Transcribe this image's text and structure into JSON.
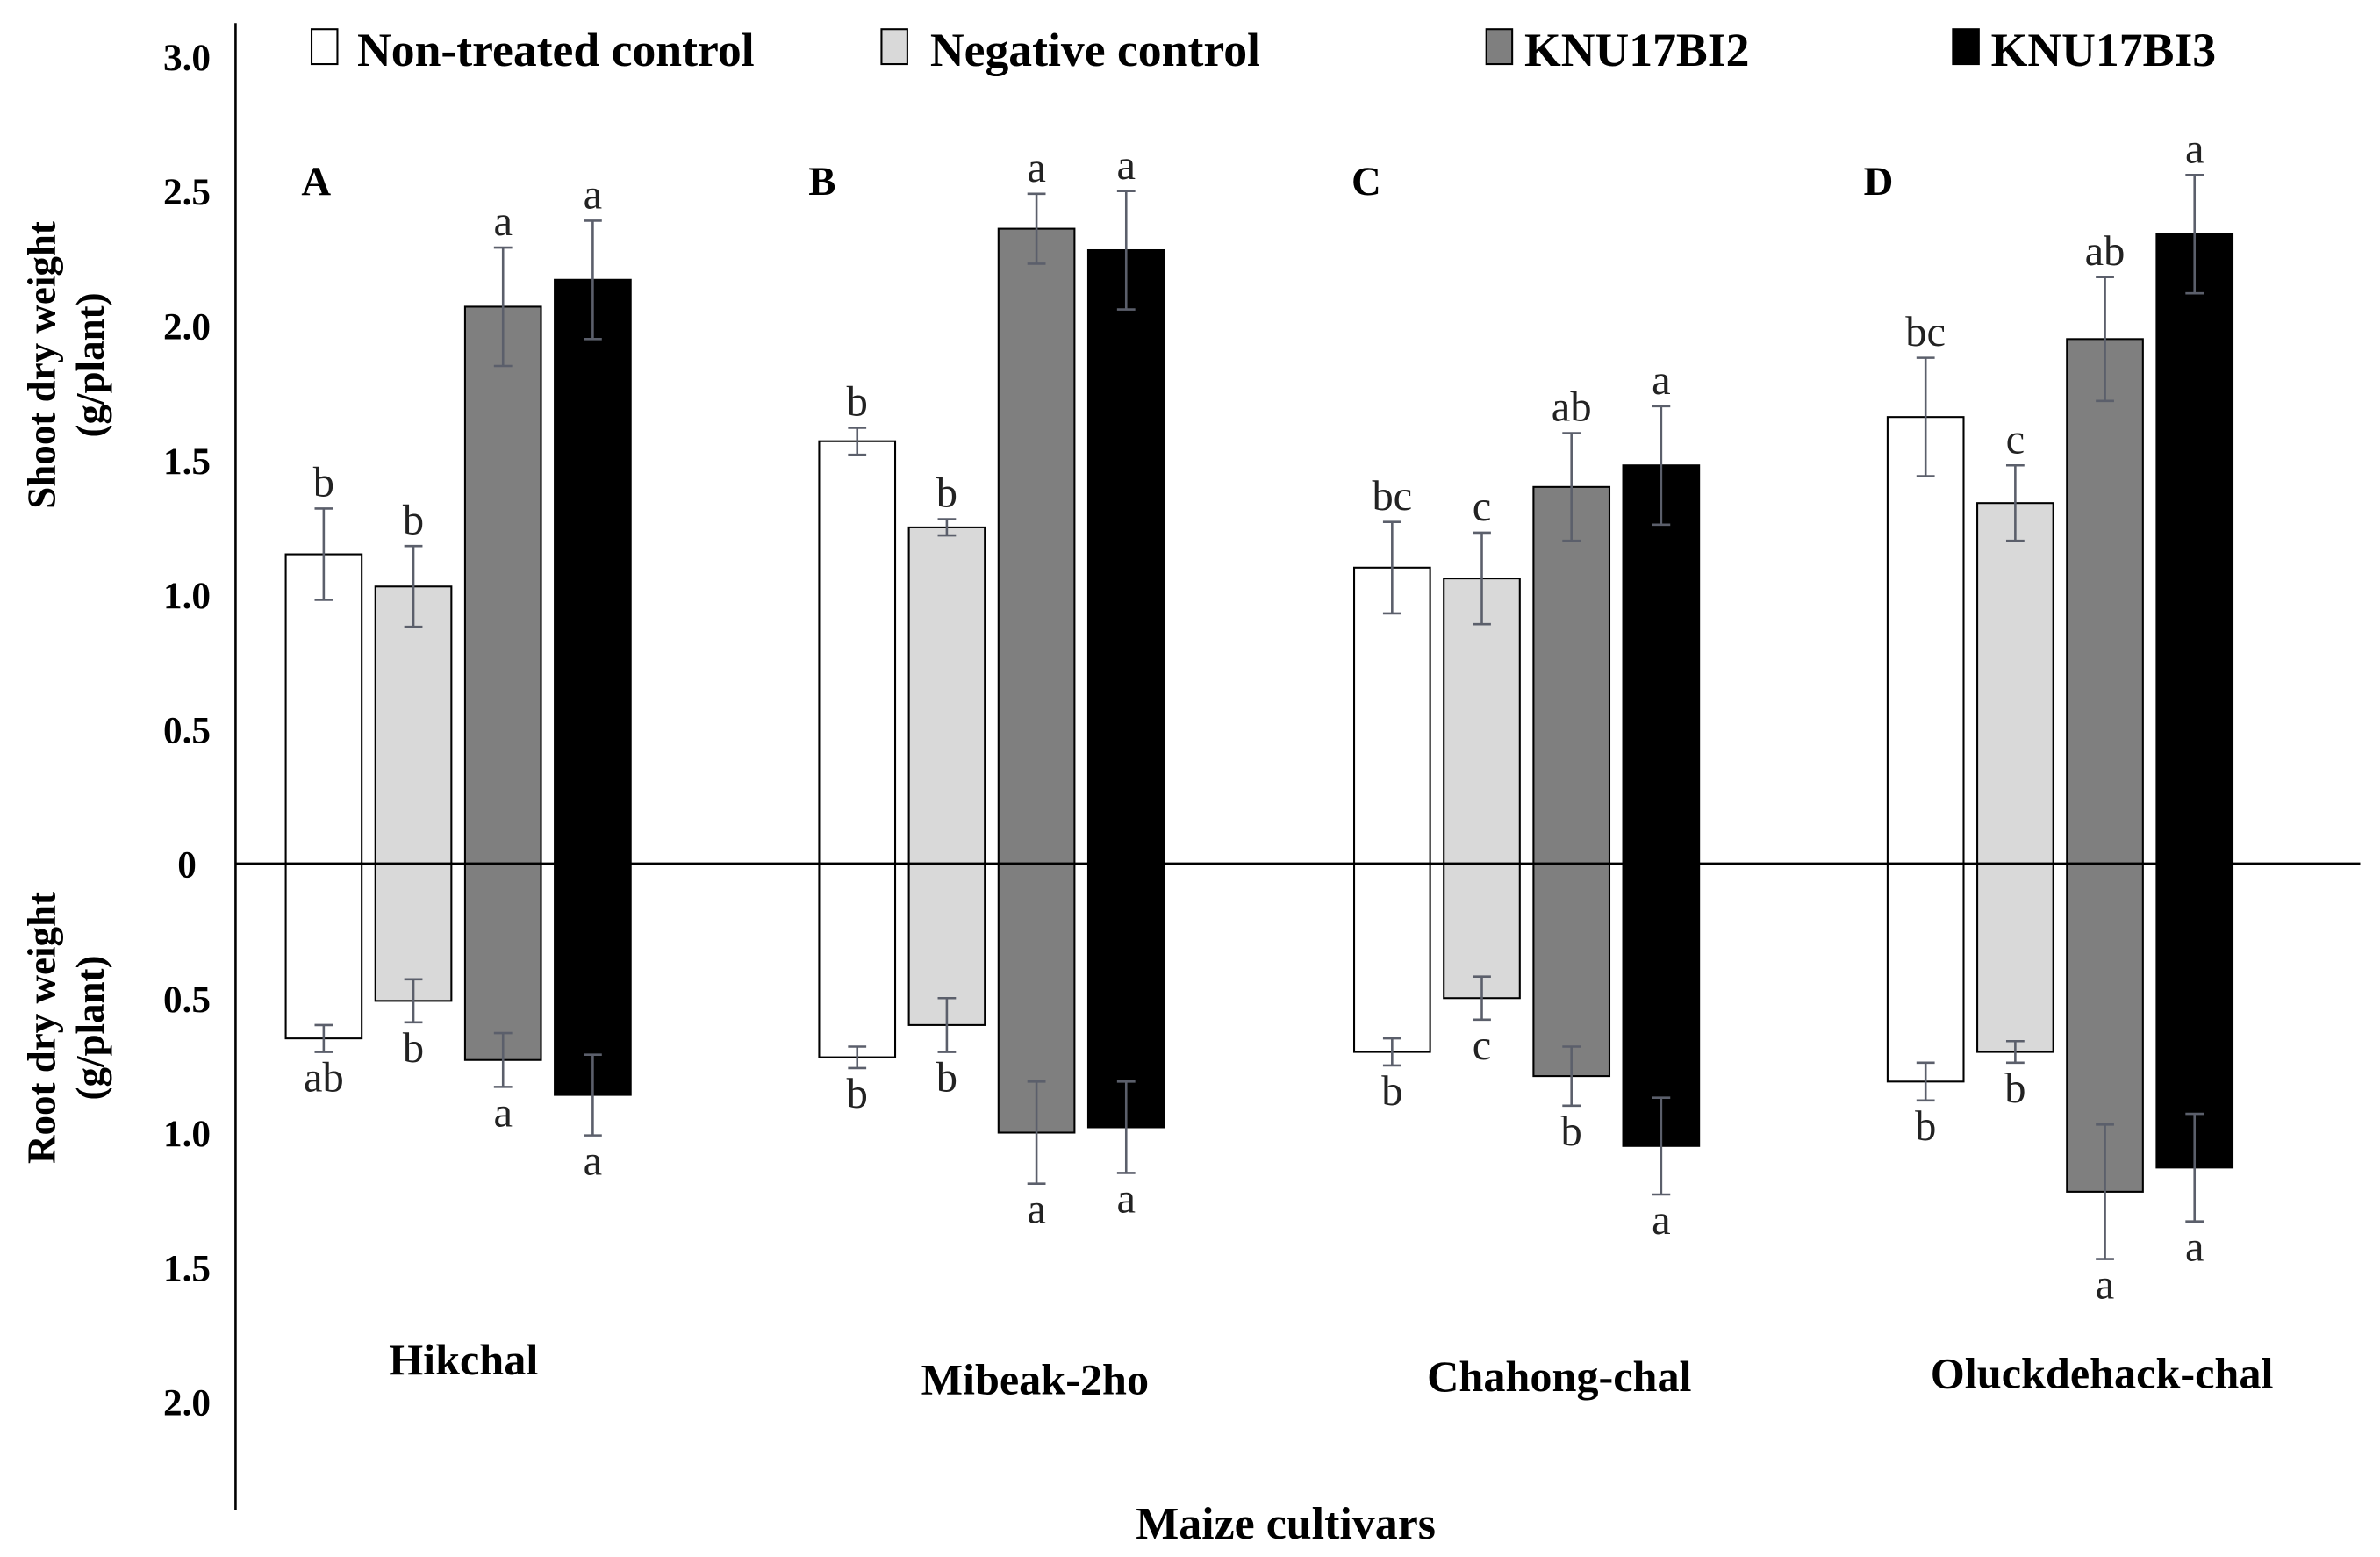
{
  "chart_data": {
    "type": "bar",
    "panels": [
      "A",
      "B",
      "C",
      "D"
    ],
    "categories": [
      "Hikchal",
      "Mibeak-2ho",
      "Chahong-chal",
      "Oluckdehack-chal"
    ],
    "xlabel": "Maize cultivars",
    "ylabel_upper": {
      "line1": "Shoot dry weight",
      "line2": "(g/plant)"
    },
    "ylabel_lower": {
      "line1": "Root dry weight",
      "line2": "(g/plant)"
    },
    "upper_ticks": [
      "3.0",
      "2.5",
      "2.0",
      "1.5",
      "1.0",
      "0.5",
      "0"
    ],
    "lower_ticks": [
      "0.5",
      "1.0",
      "1.5",
      "2.0"
    ],
    "ylim_upper": [
      0,
      3.1
    ],
    "ylim_lower": [
      0,
      2.4
    ],
    "grid": false,
    "legend_position": "top",
    "series": [
      {
        "name": "Non-treated control",
        "color": "#ffffff",
        "shoot": [
          1.15,
          1.57,
          1.1,
          1.66
        ],
        "shoot_error": [
          0.17,
          0.05,
          0.17,
          0.22
        ],
        "shoot_letters": [
          "b",
          "b",
          "bc",
          "bc"
        ],
        "root": [
          0.65,
          0.72,
          0.7,
          0.81
        ],
        "root_error": [
          0.05,
          0.04,
          0.05,
          0.07
        ],
        "root_letters": [
          "ab",
          "b",
          "b",
          "b"
        ]
      },
      {
        "name": "Negative control",
        "color": "#d9d9d9",
        "shoot": [
          1.03,
          1.25,
          1.06,
          1.34
        ],
        "shoot_error": [
          0.15,
          0.03,
          0.17,
          0.14
        ],
        "shoot_letters": [
          "b",
          "b",
          "c",
          "c"
        ],
        "root": [
          0.51,
          0.6,
          0.5,
          0.7
        ],
        "root_error": [
          0.08,
          0.1,
          0.08,
          0.04
        ],
        "root_letters": [
          "b",
          "b",
          "c",
          "b"
        ]
      },
      {
        "name": "KNU17BI2",
        "color": "#7f7f7f",
        "shoot": [
          2.07,
          2.36,
          1.4,
          1.95
        ],
        "shoot_error": [
          0.22,
          0.13,
          0.2,
          0.23
        ],
        "shoot_letters": [
          "a",
          "a",
          "ab",
          "ab"
        ],
        "root": [
          0.73,
          1.0,
          0.79,
          1.22
        ],
        "root_error": [
          0.1,
          0.19,
          0.11,
          0.25
        ],
        "root_letters": [
          "a",
          "a",
          "b",
          "a"
        ]
      },
      {
        "name": "KNU17BI3",
        "color": "#000000",
        "shoot": [
          2.17,
          2.28,
          1.48,
          2.34
        ],
        "shoot_error": [
          0.22,
          0.22,
          0.22,
          0.22
        ],
        "shoot_letters": [
          "a",
          "a",
          "a",
          "a"
        ],
        "root": [
          0.86,
          0.98,
          1.05,
          1.13
        ],
        "root_error": [
          0.15,
          0.17,
          0.18,
          0.2
        ],
        "root_letters": [
          "a",
          "a",
          "a",
          "a"
        ]
      }
    ]
  }
}
